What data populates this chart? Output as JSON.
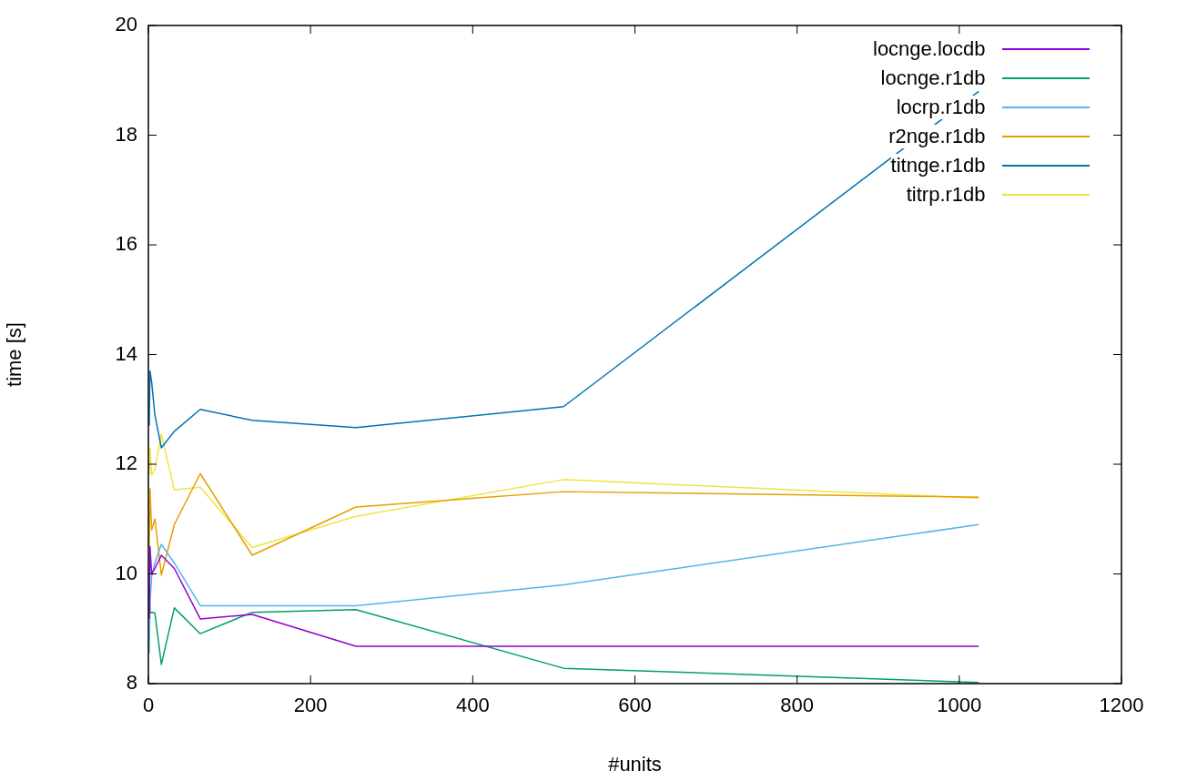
{
  "chart_data": {
    "type": "line",
    "xlabel": "#units",
    "ylabel": "time [s]",
    "xlim": [
      0,
      1200
    ],
    "xticks": [
      0,
      200,
      400,
      600,
      800,
      1000,
      1200
    ],
    "ylim": [
      8,
      20
    ],
    "yticks": [
      8,
      10,
      12,
      14,
      16,
      18,
      20
    ],
    "grid": false,
    "legend": "top right",
    "marker": "none",
    "line_style": "solid",
    "x": [
      1,
      2,
      4,
      8,
      16,
      32,
      64,
      128,
      256,
      512,
      1024
    ],
    "series": [
      {
        "name": "locnge.locdb",
        "color": "#9400d3",
        "values": [
          9.18,
          10.5,
          10.0,
          10.1,
          10.34,
          10.1,
          9.18,
          9.26,
          8.68,
          8.68,
          8.68
        ]
      },
      {
        "name": "locnge.r1db",
        "color": "#009e73",
        "values": [
          9.73,
          9.29,
          9.3,
          9.29,
          8.35,
          9.38,
          8.91,
          9.3,
          9.35,
          8.28,
          8.02
        ]
      },
      {
        "name": "locrp.r1db",
        "color": "#56b4e9",
        "values": [
          8.55,
          9.46,
          9.95,
          10.2,
          10.54,
          10.2,
          9.42,
          9.42,
          9.42,
          9.8,
          10.9
        ]
      },
      {
        "name": "r2nge.r1db",
        "color": "#e69f00",
        "values": [
          10.5,
          11.55,
          10.8,
          11.0,
          9.98,
          10.9,
          11.83,
          10.34,
          11.22,
          11.5,
          11.4
        ]
      },
      {
        "name": "titnge.r1db",
        "color": "#0072b2",
        "values": [
          12.7,
          13.7,
          13.5,
          12.9,
          12.3,
          12.6,
          13.0,
          12.8,
          12.67,
          13.05,
          18.8
        ]
      },
      {
        "name": "titrp.r1db",
        "color": "#f0e442",
        "values": [
          11.8,
          12.3,
          11.8,
          11.9,
          12.55,
          11.53,
          11.58,
          10.48,
          11.05,
          11.72,
          11.38
        ]
      }
    ]
  }
}
